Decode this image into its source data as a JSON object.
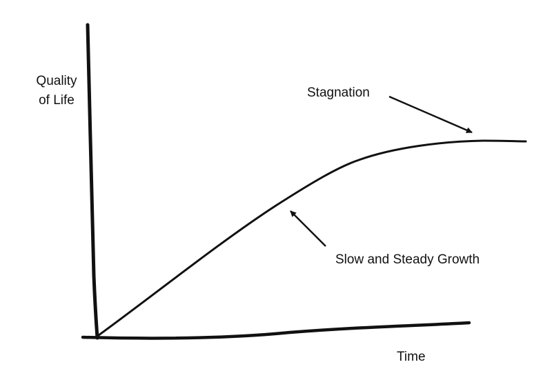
{
  "diagram": {
    "ylabel": {
      "line1": "Quality",
      "line2": "of Life"
    },
    "xlabel": "Time",
    "annotations": {
      "stagnation": "Stagnation",
      "growth": "Slow and Steady Growth"
    },
    "colors": {
      "ink": "#111111",
      "background": "#ffffff"
    }
  }
}
